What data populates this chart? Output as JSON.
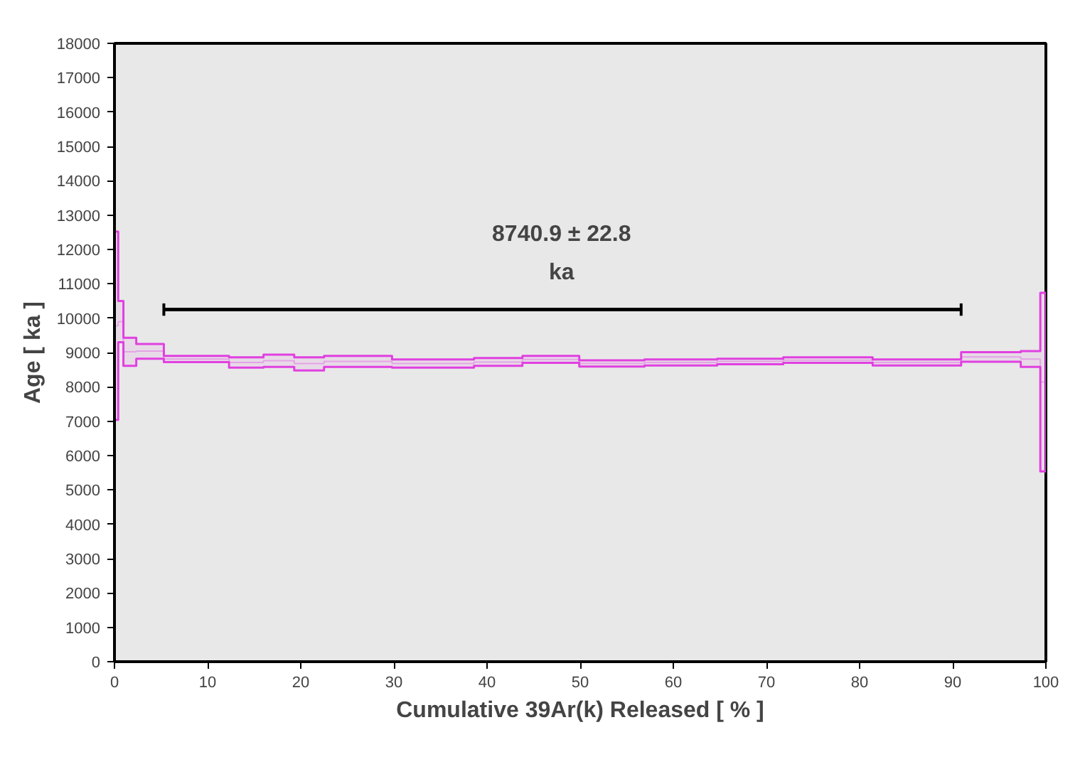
{
  "chart_data": {
    "type": "step",
    "xlabel": "Cumulative 39Ar(k) Released [ % ]",
    "ylabel": "Age [ ka ]",
    "xlim": [
      0,
      100
    ],
    "xticks": [
      0,
      10,
      20,
      30,
      40,
      50,
      60,
      70,
      80,
      90,
      100
    ],
    "ylim": [
      0,
      18000
    ],
    "yticks": [
      0,
      1000,
      2000,
      3000,
      4000,
      5000,
      6000,
      7000,
      8000,
      9000,
      10000,
      11000,
      12000,
      13000,
      14000,
      15000,
      16000,
      17000,
      18000
    ],
    "grid": false,
    "marker": "none",
    "series": [
      {
        "color": "#e040e0",
        "x": [
          0,
          0.4,
          0.96,
          2.34,
          5.3,
          12.3,
          16.0,
          19.3,
          22.5,
          26.0,
          29.8,
          34.0,
          38.6,
          43.8,
          49.9,
          56.9,
          64.7,
          71.8,
          81.4,
          90.9,
          97.3,
          99.4,
          100
        ],
        "values": [
          9780,
          9900,
          9020,
          9040,
          8810,
          8710,
          8760,
          8680,
          8740,
          8740,
          8680,
          8680,
          8720,
          8800,
          8680,
          8710,
          8740,
          8780,
          8710,
          8870,
          8810,
          8140,
          8140
        ],
        "lower": [
          7040,
          9300,
          8610,
          8820,
          8720,
          8560,
          8580,
          8480,
          8580,
          8580,
          8560,
          8560,
          8610,
          8700,
          8590,
          8620,
          8660,
          8700,
          8620,
          8730,
          8580,
          5540,
          5540
        ],
        "upper": [
          12520,
          10500,
          9430,
          9250,
          8900,
          8860,
          8940,
          8860,
          8900,
          8900,
          8800,
          8800,
          8840,
          8900,
          8770,
          8800,
          8820,
          8860,
          8800,
          9010,
          9040,
          10740,
          10740
        ]
      },
      {
        "type": "line",
        "color": "#000000",
        "x": [
          5.3,
          90.9
        ],
        "values": [
          10250,
          10250
        ],
        "errors": [
          180,
          180
        ]
      }
    ],
    "annotations": [
      "8740.9 ± 22.8\nka"
    ]
  }
}
